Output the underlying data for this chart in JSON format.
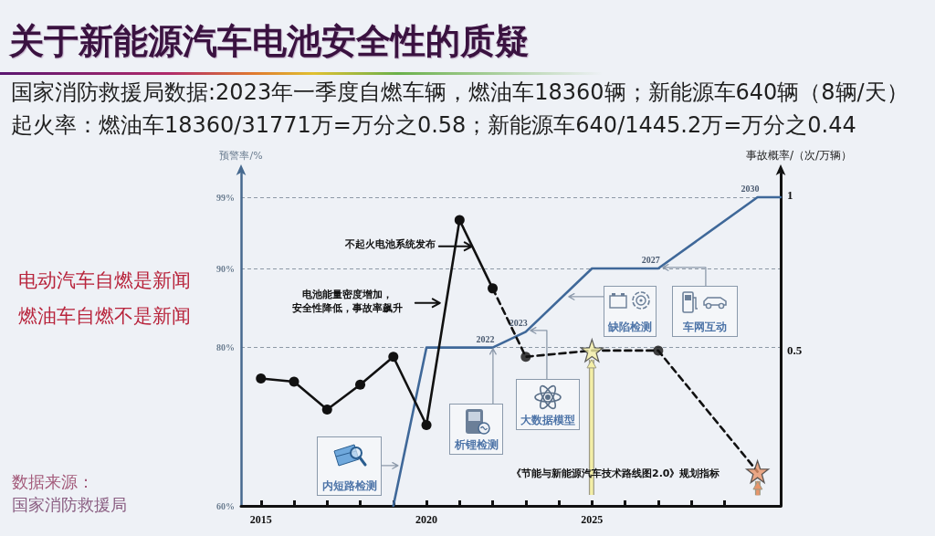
{
  "chart_data": {
    "type": "line",
    "title": "关于新能源汽车电池安全性的质疑",
    "subtitle": "国家消防救援局数据:2023年一季度自燃车辆，燃油车18360辆；新能源车640辆（8辆/天）",
    "ylabel": "预警率/%",
    "y2label": "事故概率/（次/万辆）",
    "xlim": [
      2014.4,
      2030.7
    ],
    "xticks": [
      2015,
      {
        "value": 2016,
        "label": null
      },
      {
        "value": 2017,
        "label": null
      },
      {
        "value": 2018,
        "label": null
      },
      {
        "value": 2019,
        "label": null
      },
      2020,
      {
        "value": 2021,
        "label": null
      },
      {
        "value": 2022,
        "label": null
      },
      {
        "value": 2023,
        "label": null
      },
      {
        "value": 2024,
        "label": null
      },
      2025,
      {
        "value": 2026,
        "label": null
      },
      {
        "value": 2027,
        "label": null
      },
      {
        "value": 2028,
        "label": null
      },
      {
        "value": 2029,
        "label": null
      }
    ],
    "ylim": [
      60,
      102
    ],
    "yticks": [
      {
        "value": 60,
        "label": "60%"
      },
      {
        "value": 80,
        "label": "80%"
      },
      {
        "value": 90,
        "label": "90%"
      },
      {
        "value": 99,
        "label": "99%"
      }
    ],
    "y2lim": [
      0,
      1.07
    ],
    "y2ticks": [
      0.5,
      1
    ],
    "grid": "y",
    "series": [
      {
        "color": "#3f6899",
        "x": [
          2019,
          2020,
          2022,
          2023,
          2025,
          2027,
          2030,
          2030.7
        ],
        "values": [
          60,
          80,
          80,
          82,
          90,
          90,
          99,
          99
        ],
        "marker": "none",
        "line_style": "solid"
      },
      {
        "axis": "y2",
        "color": "#111111",
        "x": [
          2015,
          2016,
          2017,
          2018,
          2019,
          2020,
          2021,
          2022
        ],
        "values": [
          0.41,
          0.4,
          0.31,
          0.39,
          0.48,
          0.26,
          0.92,
          0.7
        ],
        "marker": "circle",
        "line_style": "solid"
      },
      {
        "axis": "y2",
        "color": "#111111",
        "x": [
          2022,
          2023,
          2025,
          2027,
          2030
        ],
        "values": [
          0.7,
          0.48,
          0.5,
          0.5,
          0.11
        ],
        "marker": "none",
        "line_style": "dashed"
      },
      {
        "type": "scatter",
        "axis": "y2",
        "color": "#111111",
        "x": [
          2023,
          2027
        ],
        "values": [
          0.48,
          0.5
        ],
        "marker": "circle"
      },
      {
        "type": "scatter",
        "axis": "y2",
        "colors": [
          "#f4efa6",
          "#e8956a"
        ],
        "x": [
          2025,
          2030
        ],
        "values": [
          0.5,
          0.11
        ],
        "marker": "star"
      }
    ],
    "annotations": [
      "起火率：燃油车18360/31771万=万分之0.58；新能源车640/1445.2万=万分之0.44",
      "电动汽车自燃是新闻",
      "燃油车自燃不是新闻",
      "数据来源：",
      "国家消防救援局",
      "不起火电池系统发布",
      "电池能量密度增加，",
      "安全性降低，事故率飙升",
      "《节能与新能源汽车技术路线图2.0》规划指标",
      "内短路检测",
      "析锂检测",
      "大数据模型",
      "缺陷检测",
      "车网互动",
      {
        "text": "2022",
        "x": 2022,
        "y": 80
      },
      {
        "text": "2023",
        "x": 2023,
        "y": 82
      },
      {
        "text": "2027",
        "x": 2027,
        "y": 90
      },
      {
        "text": "2030",
        "x": 2030,
        "y": 99
      }
    ]
  }
}
